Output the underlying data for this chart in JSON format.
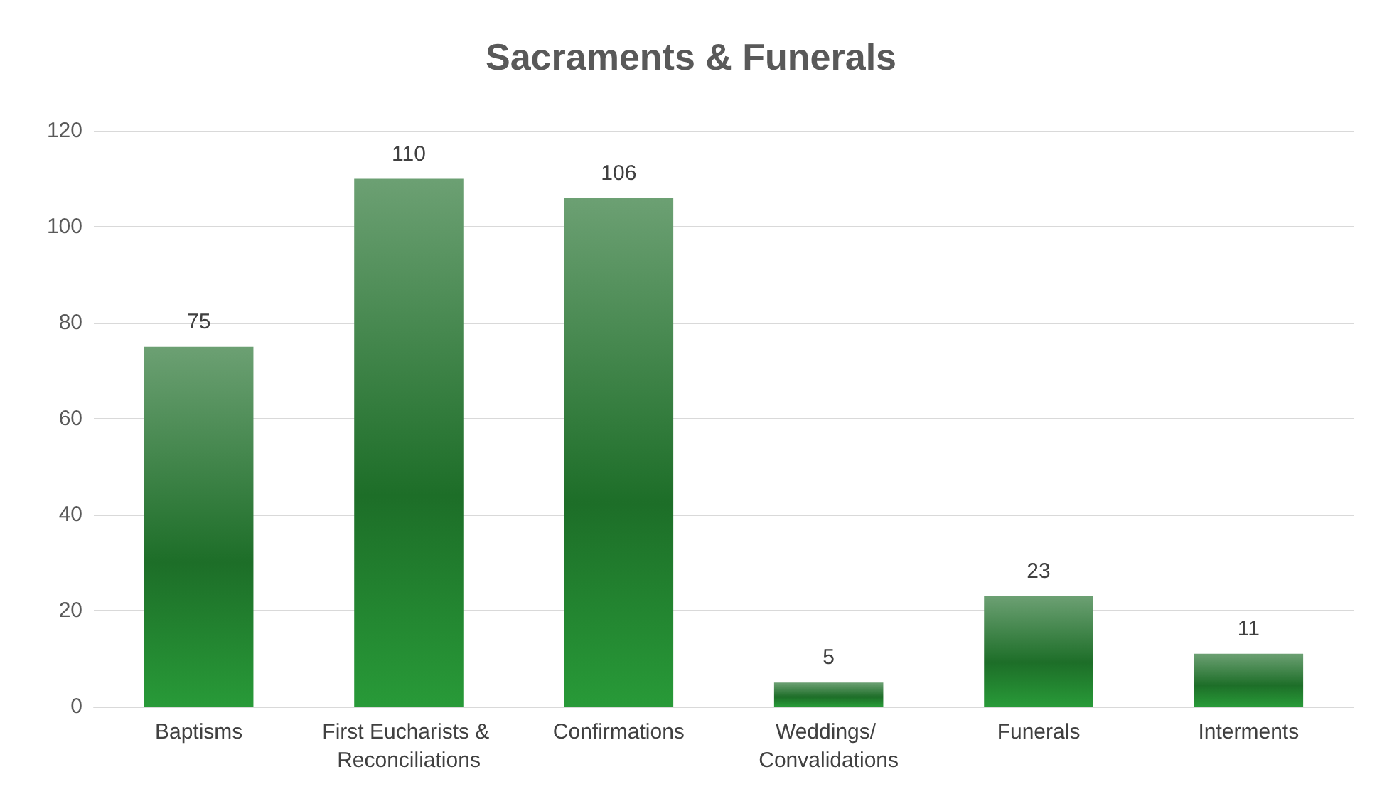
{
  "chart_data": {
    "type": "bar",
    "title": "Sacraments & Funerals",
    "categories": [
      "Baptisms",
      "First Eucharists & Reconciliations",
      "Confirmations",
      "Weddings/ Convalidations",
      "Funerals",
      "Interments"
    ],
    "values": [
      75,
      110,
      106,
      5,
      23,
      11
    ],
    "color": "#1d6e28",
    "ylim": [
      0,
      120
    ],
    "yticks": [
      0,
      20,
      40,
      60,
      80,
      100,
      120
    ],
    "grid": "y",
    "data_labels": true
  }
}
